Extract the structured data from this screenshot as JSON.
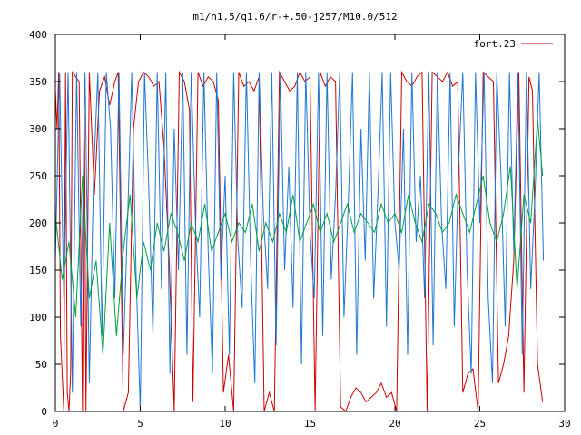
{
  "chart_data": {
    "type": "line",
    "title": "m1/n1.5/q1.6/r-+.50-j257/M10.0/512",
    "xlabel": "",
    "ylabel": "",
    "xlim": [
      0,
      30
    ],
    "ylim": [
      0,
      400
    ],
    "xticks": [
      "0",
      "5",
      "10",
      "15",
      "20",
      "25",
      "30"
    ],
    "yticks": [
      "0",
      "50",
      "100",
      "150",
      "200",
      "250",
      "300",
      "350",
      "400"
    ],
    "grid": false,
    "legend_position": "top-right",
    "series": [
      {
        "name": "fort.23",
        "color": "#cc0000",
        "x": [
          0.0,
          0.1,
          0.2,
          0.3,
          0.4,
          0.5,
          0.6,
          0.7,
          0.8,
          0.9,
          1.0,
          1.2,
          1.4,
          1.6,
          1.7,
          1.8,
          2.0,
          2.3,
          2.6,
          2.9,
          3.2,
          3.5,
          3.7,
          4.0,
          4.3,
          4.6,
          4.9,
          5.2,
          5.5,
          5.8,
          6.1,
          6.4,
          6.7,
          7.0,
          7.3,
          7.6,
          7.9,
          8.1,
          8.4,
          8.7,
          9.0,
          9.3,
          9.6,
          9.9,
          10.2,
          10.5,
          10.8,
          11.1,
          11.4,
          11.7,
          12.0,
          12.3,
          12.6,
          12.9,
          13.2,
          13.5,
          13.8,
          14.1,
          14.4,
          14.7,
          15.0,
          15.3,
          15.6,
          15.9,
          16.2,
          16.5,
          16.8,
          17.1,
          17.4,
          17.7,
          18.0,
          18.3,
          18.6,
          18.9,
          19.2,
          19.5,
          19.8,
          20.1,
          20.4,
          20.7,
          21.0,
          21.3,
          21.6,
          21.9,
          22.2,
          22.5,
          22.8,
          23.1,
          23.4,
          23.7,
          24.0,
          24.3,
          24.6,
          24.9,
          25.2,
          25.5,
          25.8,
          26.1,
          26.4,
          26.7,
          27.0,
          27.3,
          27.6,
          27.9,
          28.1,
          28.4,
          28.7
        ],
        "y": [
          340,
          300,
          360,
          80,
          40,
          0,
          360,
          20,
          0,
          40,
          360,
          355,
          350,
          0,
          360,
          0,
          360,
          230,
          340,
          355,
          325,
          350,
          360,
          0,
          20,
          300,
          350,
          360,
          355,
          345,
          350,
          280,
          160,
          0,
          360,
          350,
          320,
          10,
          360,
          345,
          355,
          350,
          330,
          20,
          60,
          0,
          360,
          345,
          350,
          340,
          355,
          0,
          20,
          0,
          360,
          350,
          340,
          345,
          360,
          350,
          355,
          0,
          360,
          345,
          355,
          350,
          5,
          0,
          15,
          25,
          20,
          10,
          15,
          20,
          30,
          15,
          20,
          0,
          360,
          350,
          345,
          355,
          360,
          0,
          360,
          355,
          350,
          360,
          345,
          350,
          20,
          40,
          45,
          0,
          360,
          355,
          350,
          30,
          50,
          80,
          160,
          360,
          20,
          355,
          340,
          50,
          10
        ]
      },
      {
        "name": "",
        "color": "#1f77d4",
        "x": [
          0.0,
          0.25,
          0.5,
          0.75,
          1.0,
          1.25,
          1.5,
          1.75,
          2.0,
          2.25,
          2.5,
          2.75,
          3.0,
          3.25,
          3.5,
          3.75,
          4.0,
          4.25,
          4.5,
          4.75,
          5.0,
          5.25,
          5.5,
          5.75,
          6.0,
          6.25,
          6.5,
          6.75,
          7.0,
          7.25,
          7.5,
          7.75,
          8.0,
          8.25,
          8.5,
          8.75,
          9.0,
          9.25,
          9.5,
          9.75,
          10.0,
          10.25,
          10.5,
          10.75,
          11.0,
          11.25,
          11.5,
          11.75,
          12.0,
          12.25,
          12.5,
          12.75,
          13.0,
          13.25,
          13.5,
          13.75,
          14.0,
          14.25,
          14.5,
          14.75,
          15.0,
          15.25,
          15.5,
          15.75,
          16.0,
          16.25,
          16.5,
          16.75,
          17.0,
          17.25,
          17.5,
          17.75,
          18.0,
          18.25,
          18.5,
          18.75,
          19.0,
          19.25,
          19.5,
          19.75,
          20.0,
          20.25,
          20.5,
          20.75,
          21.0,
          21.25,
          21.5,
          21.75,
          22.0,
          22.25,
          22.5,
          22.75,
          23.0,
          23.25,
          23.5,
          23.75,
          24.0,
          24.25,
          24.5,
          24.75,
          25.0,
          25.25,
          25.5,
          25.75,
          26.0,
          26.25,
          26.5,
          26.75,
          27.0,
          27.25,
          27.5,
          27.75,
          28.0,
          28.25,
          28.5,
          28.75
        ],
        "y": [
          160,
          360,
          120,
          360,
          20,
          360,
          90,
          360,
          30,
          250,
          360,
          80,
          360,
          300,
          120,
          360,
          60,
          200,
          360,
          150,
          0,
          360,
          240,
          80,
          360,
          130,
          360,
          40,
          300,
          150,
          360,
          60,
          360,
          200,
          100,
          360,
          170,
          40,
          360,
          140,
          250,
          60,
          360,
          180,
          110,
          360,
          160,
          30,
          360,
          210,
          130,
          360,
          70,
          360,
          150,
          260,
          110,
          360,
          50,
          360,
          190,
          120,
          360,
          80,
          360,
          140,
          230,
          360,
          100,
          220,
          360,
          60,
          300,
          160,
          360,
          120,
          230,
          360,
          90,
          360,
          200,
          150,
          300,
          60,
          360,
          180,
          250,
          120,
          360,
          70,
          360,
          200,
          130,
          360,
          90,
          260,
          360,
          150,
          40,
          360,
          200,
          360,
          120,
          30,
          360,
          250,
          90,
          360,
          170,
          360,
          60,
          360,
          130,
          230,
          360,
          160
        ]
      },
      {
        "name": "",
        "color": "#00a040",
        "x": [
          0.0,
          0.4,
          0.8,
          1.2,
          1.6,
          2.0,
          2.4,
          2.8,
          3.2,
          3.6,
          4.0,
          4.4,
          4.8,
          5.2,
          5.6,
          6.0,
          6.4,
          6.8,
          7.2,
          7.6,
          8.0,
          8.4,
          8.8,
          9.2,
          9.6,
          10.0,
          10.4,
          10.8,
          11.2,
          11.6,
          12.0,
          12.4,
          12.8,
          13.2,
          13.6,
          14.0,
          14.4,
          14.8,
          15.2,
          15.6,
          16.0,
          16.4,
          16.8,
          17.2,
          17.6,
          18.0,
          18.4,
          18.8,
          19.2,
          19.6,
          20.0,
          20.4,
          20.8,
          21.2,
          21.6,
          22.0,
          22.4,
          22.8,
          23.2,
          23.6,
          24.0,
          24.4,
          24.8,
          25.2,
          25.6,
          26.0,
          26.4,
          26.8,
          27.2,
          27.6,
          28.0,
          28.4,
          28.7
        ],
        "y": [
          210,
          140,
          180,
          100,
          250,
          120,
          160,
          60,
          200,
          80,
          170,
          230,
          120,
          180,
          150,
          200,
          170,
          210,
          190,
          160,
          200,
          180,
          220,
          170,
          190,
          210,
          180,
          200,
          190,
          220,
          170,
          200,
          180,
          210,
          190,
          230,
          180,
          200,
          220,
          190,
          210,
          180,
          200,
          220,
          190,
          210,
          200,
          190,
          220,
          200,
          210,
          190,
          230,
          200,
          180,
          220,
          210,
          190,
          200,
          230,
          210,
          190,
          220,
          250,
          200,
          180,
          210,
          260,
          130,
          230,
          200,
          310,
          250
        ]
      }
    ]
  }
}
